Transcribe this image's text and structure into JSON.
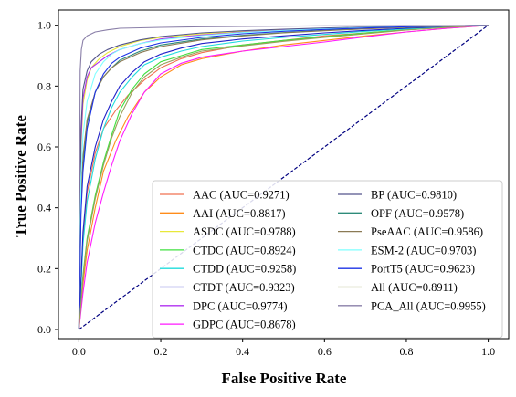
{
  "chart_data": {
    "type": "line",
    "title": "",
    "xlabel": "False Positive Rate",
    "ylabel": "True Positive Rate",
    "xlim": [
      -0.05,
      1.05
    ],
    "ylim": [
      -0.03,
      1.05
    ],
    "xticks": [
      "0.0",
      "0.2",
      "0.4",
      "0.6",
      "0.8",
      "1.0"
    ],
    "yticks": [
      "0.0",
      "0.2",
      "0.4",
      "0.6",
      "0.8",
      "1.0"
    ],
    "grid": false,
    "legend_placement": "lower-right",
    "legend_columns": 2,
    "diagonal": {
      "x": [
        0,
        1
      ],
      "y": [
        0,
        1
      ],
      "color": "#000080",
      "style": "dashed"
    },
    "series": [
      {
        "name": "AAC (AUC=0.9271)",
        "color": "#f07050",
        "x": [
          0,
          0.01,
          0.02,
          0.04,
          0.06,
          0.09,
          0.12,
          0.16,
          0.2,
          0.25,
          0.3,
          0.4,
          0.5,
          0.6,
          0.7,
          0.8,
          0.9,
          1.0
        ],
        "y": [
          0,
          0.3,
          0.45,
          0.58,
          0.66,
          0.72,
          0.77,
          0.82,
          0.86,
          0.89,
          0.91,
          0.935,
          0.95,
          0.965,
          0.975,
          0.985,
          0.993,
          1.0
        ]
      },
      {
        "name": "AAI (AUC=0.8817)",
        "color": "#ff8c1a",
        "x": [
          0,
          0.01,
          0.02,
          0.04,
          0.06,
          0.09,
          0.12,
          0.16,
          0.2,
          0.25,
          0.3,
          0.4,
          0.5,
          0.6,
          0.7,
          0.8,
          0.9,
          1.0
        ],
        "y": [
          0,
          0.15,
          0.26,
          0.4,
          0.52,
          0.62,
          0.7,
          0.78,
          0.83,
          0.87,
          0.89,
          0.915,
          0.935,
          0.95,
          0.965,
          0.978,
          0.99,
          1.0
        ]
      },
      {
        "name": "ASDC (AUC=0.9788)",
        "color": "#e8e83a",
        "x": [
          0,
          0.005,
          0.01,
          0.02,
          0.03,
          0.05,
          0.07,
          0.1,
          0.15,
          0.2,
          0.3,
          0.4,
          0.5,
          0.6,
          0.7,
          0.8,
          0.9,
          1.0
        ],
        "y": [
          0,
          0.6,
          0.74,
          0.82,
          0.86,
          0.89,
          0.91,
          0.93,
          0.95,
          0.96,
          0.972,
          0.98,
          0.985,
          0.99,
          0.993,
          0.996,
          0.998,
          1.0
        ]
      },
      {
        "name": "CTDC (AUC=0.8924)",
        "color": "#40e040",
        "x": [
          0,
          0.01,
          0.02,
          0.04,
          0.06,
          0.08,
          0.1,
          0.13,
          0.16,
          0.2,
          0.25,
          0.3,
          0.4,
          0.5,
          0.6,
          0.7,
          0.8,
          0.9,
          1.0
        ],
        "y": [
          0,
          0.18,
          0.3,
          0.44,
          0.55,
          0.64,
          0.72,
          0.79,
          0.84,
          0.88,
          0.9,
          0.92,
          0.935,
          0.95,
          0.962,
          0.975,
          0.985,
          0.993,
          1.0
        ]
      },
      {
        "name": "CTDD (AUC=0.9258)",
        "color": "#1fdcdc",
        "x": [
          0,
          0.01,
          0.02,
          0.04,
          0.06,
          0.08,
          0.1,
          0.13,
          0.16,
          0.2,
          0.25,
          0.3,
          0.4,
          0.5,
          0.6,
          0.7,
          0.8,
          0.9,
          1.0
        ],
        "y": [
          0,
          0.28,
          0.42,
          0.56,
          0.66,
          0.73,
          0.78,
          0.83,
          0.87,
          0.895,
          0.915,
          0.93,
          0.948,
          0.96,
          0.97,
          0.98,
          0.988,
          0.995,
          1.0
        ]
      },
      {
        "name": "CTDT (AUC=0.9323)",
        "color": "#2020c8",
        "x": [
          0,
          0.01,
          0.02,
          0.04,
          0.06,
          0.08,
          0.1,
          0.13,
          0.16,
          0.2,
          0.25,
          0.3,
          0.4,
          0.5,
          0.6,
          0.7,
          0.8,
          0.9,
          1.0
        ],
        "y": [
          0,
          0.32,
          0.47,
          0.6,
          0.69,
          0.75,
          0.8,
          0.845,
          0.88,
          0.905,
          0.925,
          0.94,
          0.955,
          0.965,
          0.975,
          0.983,
          0.99,
          0.996,
          1.0
        ]
      },
      {
        "name": "DPC (AUC=0.9774)",
        "color": "#b030f0",
        "x": [
          0,
          0.005,
          0.01,
          0.02,
          0.03,
          0.05,
          0.07,
          0.1,
          0.15,
          0.2,
          0.3,
          0.4,
          0.5,
          0.6,
          0.7,
          0.8,
          0.9,
          1.0
        ],
        "y": [
          0,
          0.62,
          0.76,
          0.83,
          0.86,
          0.88,
          0.9,
          0.92,
          0.94,
          0.955,
          0.968,
          0.977,
          0.984,
          0.989,
          0.993,
          0.996,
          0.998,
          1.0
        ]
      },
      {
        "name": "GDPC (AUC=0.8678)",
        "color": "#ff18ff",
        "x": [
          0,
          0.01,
          0.02,
          0.04,
          0.06,
          0.08,
          0.1,
          0.13,
          0.16,
          0.2,
          0.25,
          0.3,
          0.4,
          0.5,
          0.6,
          0.7,
          0.8,
          0.9,
          1.0
        ],
        "y": [
          0,
          0.12,
          0.22,
          0.35,
          0.45,
          0.54,
          0.62,
          0.71,
          0.78,
          0.84,
          0.875,
          0.895,
          0.915,
          0.93,
          0.945,
          0.962,
          0.978,
          0.99,
          1.0
        ]
      },
      {
        "name": "BP (AUC=0.9810)",
        "color": "#55558c",
        "x": [
          0,
          0.005,
          0.01,
          0.02,
          0.03,
          0.05,
          0.07,
          0.1,
          0.15,
          0.2,
          0.3,
          0.4,
          0.5,
          0.6,
          0.7,
          0.8,
          0.9,
          1.0
        ],
        "y": [
          0,
          0.66,
          0.79,
          0.85,
          0.88,
          0.905,
          0.92,
          0.935,
          0.952,
          0.963,
          0.975,
          0.982,
          0.987,
          0.991,
          0.994,
          0.996,
          0.998,
          1.0
        ]
      },
      {
        "name": "OPF (AUC=0.9578)",
        "color": "#2e8b7a",
        "x": [
          0,
          0.005,
          0.01,
          0.02,
          0.04,
          0.06,
          0.08,
          0.1,
          0.15,
          0.2,
          0.3,
          0.4,
          0.5,
          0.6,
          0.7,
          0.8,
          0.9,
          1.0
        ],
        "y": [
          0,
          0.4,
          0.55,
          0.68,
          0.78,
          0.83,
          0.86,
          0.885,
          0.915,
          0.935,
          0.955,
          0.967,
          0.976,
          0.983,
          0.989,
          0.993,
          0.997,
          1.0
        ]
      },
      {
        "name": "PseAAC (AUC=0.9586)",
        "color": "#8b7a55",
        "x": [
          0,
          0.005,
          0.01,
          0.02,
          0.04,
          0.06,
          0.08,
          0.1,
          0.15,
          0.2,
          0.3,
          0.4,
          0.5,
          0.6,
          0.7,
          0.8,
          0.9,
          1.0
        ],
        "y": [
          0,
          0.42,
          0.57,
          0.69,
          0.78,
          0.83,
          0.86,
          0.88,
          0.91,
          0.93,
          0.952,
          0.965,
          0.975,
          0.982,
          0.988,
          0.993,
          0.997,
          1.0
        ]
      },
      {
        "name": "ESM-2 (AUC=0.9703)",
        "color": "#7fffff",
        "x": [
          0,
          0.005,
          0.01,
          0.02,
          0.04,
          0.06,
          0.08,
          0.1,
          0.15,
          0.2,
          0.3,
          0.4,
          0.5,
          0.6,
          0.7,
          0.8,
          0.9,
          1.0
        ],
        "y": [
          0,
          0.5,
          0.64,
          0.75,
          0.84,
          0.88,
          0.905,
          0.92,
          0.94,
          0.952,
          0.966,
          0.976,
          0.983,
          0.988,
          0.992,
          0.995,
          0.998,
          1.0
        ]
      },
      {
        "name": "PortT5 (AUC=0.9623)",
        "color": "#1c32e6",
        "x": [
          0,
          0.005,
          0.01,
          0.02,
          0.04,
          0.06,
          0.08,
          0.1,
          0.15,
          0.2,
          0.3,
          0.4,
          0.5,
          0.6,
          0.7,
          0.8,
          0.9,
          1.0
        ],
        "y": [
          0,
          0.38,
          0.52,
          0.66,
          0.78,
          0.84,
          0.875,
          0.895,
          0.925,
          0.942,
          0.96,
          0.972,
          0.98,
          0.986,
          0.991,
          0.995,
          0.998,
          1.0
        ]
      },
      {
        "name": "All (AUC=0.8911)",
        "color": "#9aa05a",
        "x": [
          0,
          0.01,
          0.02,
          0.04,
          0.06,
          0.08,
          0.1,
          0.13,
          0.16,
          0.2,
          0.25,
          0.3,
          0.4,
          0.5,
          0.6,
          0.7,
          0.8,
          0.9,
          1.0
        ],
        "y": [
          0,
          0.17,
          0.29,
          0.43,
          0.54,
          0.63,
          0.7,
          0.78,
          0.83,
          0.87,
          0.895,
          0.915,
          0.932,
          0.947,
          0.96,
          0.972,
          0.984,
          0.993,
          1.0
        ]
      },
      {
        "name": "PCA_All (AUC=0.9955)",
        "color": "#8a7fa8",
        "x": [
          0,
          0.003,
          0.006,
          0.01,
          0.02,
          0.04,
          0.07,
          0.1,
          0.2,
          0.3,
          0.4,
          0.5,
          0.6,
          0.7,
          0.8,
          0.9,
          1.0
        ],
        "y": [
          0,
          0.85,
          0.92,
          0.95,
          0.965,
          0.978,
          0.985,
          0.99,
          0.993,
          0.995,
          0.996,
          0.997,
          0.998,
          0.998,
          0.999,
          0.999,
          1.0
        ]
      }
    ]
  }
}
